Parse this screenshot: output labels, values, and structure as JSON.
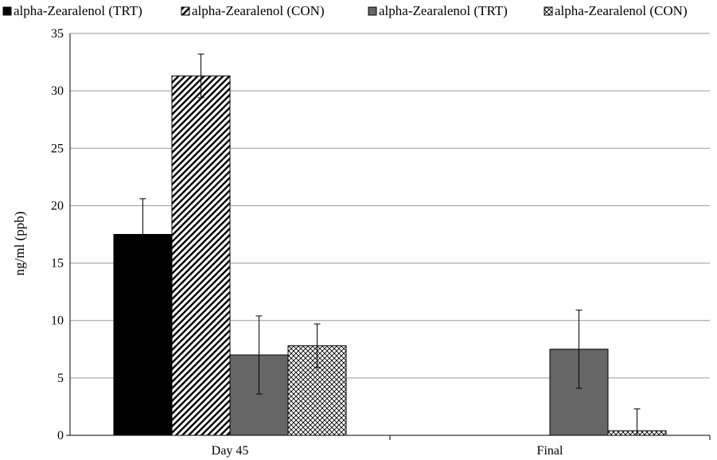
{
  "chart_data": {
    "type": "bar",
    "title": "",
    "xlabel": "",
    "ylabel": "ng/ml (ppb)",
    "ylim": [
      0,
      35
    ],
    "yticks": [
      "0",
      "5",
      "10",
      "15",
      "20",
      "25",
      "30",
      "35"
    ],
    "grid": true,
    "legend_position": "top",
    "categories": [
      "Day 45",
      "Final"
    ],
    "series": [
      {
        "name": "alpha-Zearalenol (TRT)",
        "fill": "solid-black",
        "color": "#000000",
        "values": [
          17.5,
          null
        ],
        "errors": [
          3.1,
          null
        ]
      },
      {
        "name": "alpha-Zearalenol (CON)",
        "fill": "diagonal-stripes",
        "color": "#000000",
        "values": [
          31.3,
          null
        ],
        "errors": [
          1.9,
          null
        ]
      },
      {
        "name": "alpha-Zearalenol (TRT)",
        "fill": "solid-gray",
        "color": "#666666",
        "values": [
          7.0,
          7.5
        ],
        "errors": [
          3.4,
          3.4
        ]
      },
      {
        "name": "alpha-Zearalenol (CON)",
        "fill": "crosshatch",
        "color": "#000000",
        "values": [
          7.8,
          0.4
        ],
        "errors": [
          1.9,
          1.9
        ]
      }
    ]
  }
}
